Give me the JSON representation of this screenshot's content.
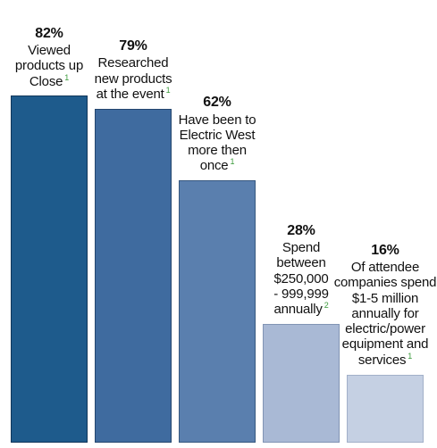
{
  "chart_data": {
    "type": "bar",
    "categories": [
      "Viewed products up Close",
      "Researched new products at the event",
      "Have been to Electric West more then once",
      "Spend between $250,000 - 999,999 annually",
      "Of attendee companies spend $1-5 million annually for electric/power equipment and services"
    ],
    "values": [
      82,
      79,
      62,
      28,
      16
    ],
    "ylim": [
      0,
      100
    ],
    "grid": false,
    "legend": "none",
    "bars": [
      {
        "value_label": "82%",
        "lines": [
          "Viewed",
          "products up",
          "Close"
        ],
        "note": "1",
        "color": "#1e5b8c",
        "border": "#10365a"
      },
      {
        "value_label": "79%",
        "lines": [
          "Researched",
          "new products",
          "at the event"
        ],
        "note": "1",
        "color": "#3f6b9f",
        "border": "#24466e"
      },
      {
        "value_label": "62%",
        "lines": [
          "Have been to",
          "Electric West",
          "more then",
          "once"
        ],
        "note": "1",
        "color": "#5a7fae",
        "border": "#36587f"
      },
      {
        "value_label": "28%",
        "lines": [
          "Spend",
          "between",
          "$250,000",
          "- 999,999",
          "annually"
        ],
        "note": "2",
        "color": "#a9b9d5",
        "border": "#8194b4"
      },
      {
        "value_label": "16%",
        "lines": [
          "Of attendee",
          "companies spend",
          "$1-5 million",
          "annually for",
          "electric/power",
          "equipment and",
          "services"
        ],
        "note": "1",
        "color": "#c5d0e3",
        "border": "#a2b0c9"
      }
    ],
    "note_color": "#3a9a3a"
  }
}
